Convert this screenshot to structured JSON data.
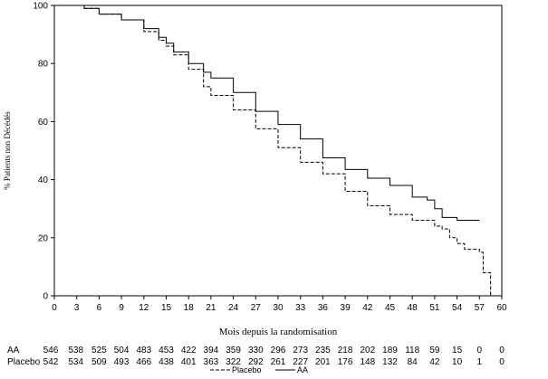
{
  "chart_data": {
    "type": "line",
    "title": "",
    "xlabel": "Mois depuis la randomisation",
    "ylabel": "% Patients non Décédés",
    "xlim": [
      0,
      60
    ],
    "ylim": [
      0,
      100
    ],
    "x_ticks": [
      0,
      3,
      6,
      9,
      12,
      15,
      18,
      21,
      24,
      27,
      30,
      33,
      36,
      39,
      42,
      45,
      48,
      51,
      54,
      57,
      60
    ],
    "y_ticks": [
      0,
      20,
      40,
      60,
      80,
      100
    ],
    "grid": false,
    "series": [
      {
        "name": "AA",
        "style": "solid",
        "x": [
          0,
          2,
          4,
          6,
          9,
          12,
          14,
          15,
          16,
          18,
          20,
          21,
          24,
          27,
          30,
          33,
          36,
          39,
          42,
          45,
          48,
          50,
          51,
          52,
          54,
          57
        ],
        "y": [
          100,
          100,
          99,
          97,
          95,
          92,
          89,
          87,
          84,
          80,
          77,
          75,
          70,
          63.5,
          59,
          54,
          47.5,
          43.5,
          40.5,
          38,
          34,
          33,
          30,
          27,
          26,
          26
        ]
      },
      {
        "name": "Placebo",
        "style": "dashed",
        "x": [
          0,
          2,
          4,
          6,
          9,
          12,
          14,
          15,
          16,
          18,
          20,
          21,
          24,
          27,
          30,
          33,
          36,
          39,
          42,
          45,
          48,
          51,
          52,
          53,
          54,
          55,
          57,
          57.5,
          58,
          58.5
        ],
        "y": [
          100,
          100,
          99,
          97,
          95,
          91,
          88,
          86,
          83,
          78,
          72,
          69,
          64,
          57.5,
          51,
          46,
          42,
          36,
          31,
          28,
          26,
          24,
          23,
          20,
          18,
          16,
          15,
          8,
          8,
          0
        ]
      }
    ],
    "risk_table": {
      "rows": [
        {
          "label": "AA",
          "values": [
            "546",
            "538",
            "525",
            "504",
            "483",
            "453",
            "422",
            "394",
            "359",
            "330",
            "296",
            "273",
            "235",
            "218",
            "202",
            "189",
            "118",
            "59",
            "15",
            "0",
            "0"
          ]
        },
        {
          "label": "Placebo",
          "values": [
            "542",
            "534",
            "509",
            "493",
            "466",
            "438",
            "401",
            "363",
            "322",
            "292",
            "261",
            "227",
            "201",
            "176",
            "148",
            "132",
            "84",
            "42",
            "10",
            "1",
            "0"
          ]
        }
      ]
    },
    "legend": {
      "position": "bottom-center",
      "entries": [
        {
          "name": "Placebo",
          "style": "dashed"
        },
        {
          "name": "AA",
          "style": "solid"
        }
      ]
    }
  }
}
